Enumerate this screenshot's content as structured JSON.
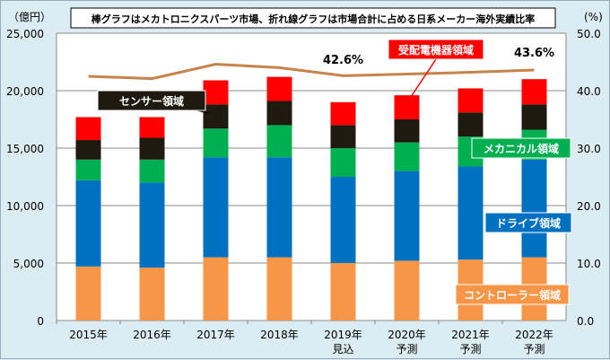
{
  "chart_data": {
    "type": "bar",
    "title": "棒グラフはメカトロニクスパーツ市場、折れ線グラフは市場合計に占める日系メーカー海外実績比率",
    "ylabel": "（億円）",
    "y2label": "(%)",
    "ylim": [
      0,
      25000
    ],
    "y2lim": [
      0,
      50
    ],
    "yticks": [
      "0",
      "5,000",
      "10,000",
      "15,000",
      "20,000",
      "25,000"
    ],
    "y2ticks": [
      "0.0",
      "10.0",
      "20.0",
      "30.0",
      "40.0",
      "50.0"
    ],
    "categories": [
      [
        "2015年",
        ""
      ],
      [
        "2016年",
        ""
      ],
      [
        "2017年",
        ""
      ],
      [
        "2018年",
        ""
      ],
      [
        "2019年",
        "見込"
      ],
      [
        "2020年",
        "予測"
      ],
      [
        "2021年",
        "予測"
      ],
      [
        "2022年",
        "予測"
      ]
    ],
    "series": [
      {
        "name": "コントローラー領域",
        "color": "#f79646",
        "values": [
          4700,
          4600,
          5500,
          5500,
          5000,
          5200,
          5300,
          5500
        ]
      },
      {
        "name": "ドライブ領域",
        "color": "#0070c0",
        "values": [
          7500,
          7400,
          8700,
          8700,
          7500,
          7800,
          8100,
          8500
        ]
      },
      {
        "name": "メカニカル領域",
        "color": "#00b050",
        "values": [
          1800,
          2000,
          2500,
          2800,
          2500,
          2500,
          2600,
          2600
        ]
      },
      {
        "name": "センサー領域",
        "color": "#1e1a10",
        "values": [
          1700,
          1900,
          2100,
          2100,
          2000,
          2000,
          2100,
          2200
        ]
      },
      {
        "name": "受配電機器領域",
        "color": "#ff0000",
        "values": [
          2000,
          1800,
          2100,
          2100,
          2000,
          2100,
          2100,
          2200
        ]
      }
    ],
    "line": {
      "name": "日系メーカー海外実績比率",
      "color": "#c8834a",
      "values": [
        42.5,
        42.1,
        44.6,
        44.0,
        42.6,
        42.9,
        43.2,
        43.6
      ]
    },
    "annotations": [
      "42.6%",
      "43.6%"
    ]
  }
}
